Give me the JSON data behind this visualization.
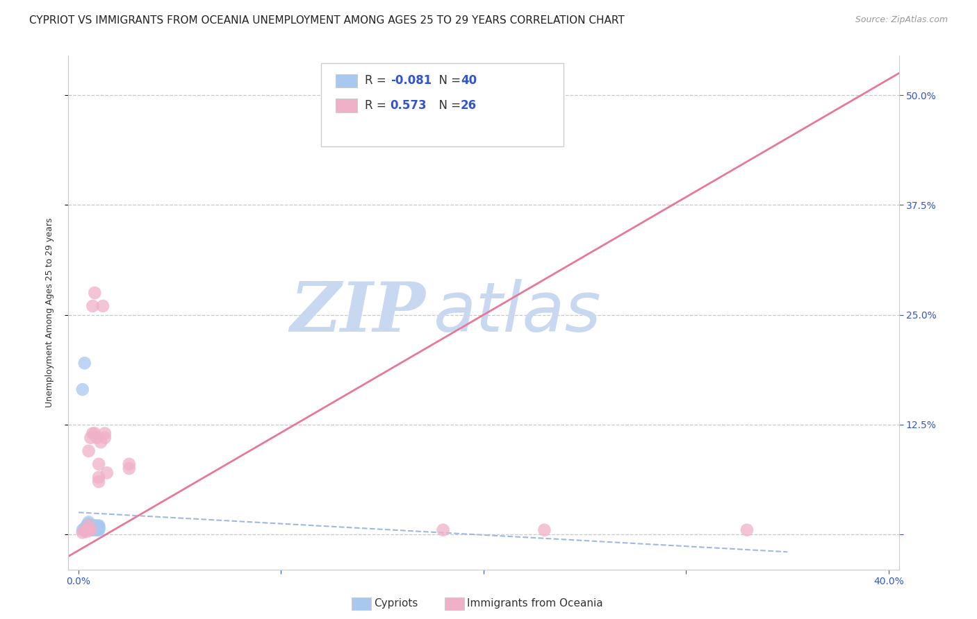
{
  "title": "CYPRIOT VS IMMIGRANTS FROM OCEANIA UNEMPLOYMENT AMONG AGES 25 TO 29 YEARS CORRELATION CHART",
  "source": "Source: ZipAtlas.com",
  "ylabel": "Unemployment Among Ages 25 to 29 years",
  "xlim": [
    -0.005,
    0.405
  ],
  "ylim": [
    -0.04,
    0.545
  ],
  "xticks": [
    0.0,
    0.1,
    0.2,
    0.3,
    0.4
  ],
  "xticklabels": [
    "0.0%",
    "",
    "",
    "",
    "40.0%"
  ],
  "ytick_positions": [
    0.0,
    0.125,
    0.25,
    0.375,
    0.5
  ],
  "yticklabels": [
    "",
    "12.5%",
    "25.0%",
    "37.5%",
    "50.0%"
  ],
  "grid_color": "#c8c8c8",
  "background_color": "#ffffff",
  "cypriot_color": "#a8c8f0",
  "oceania_color": "#f0b0c8",
  "cypriot_line_color": "#a0b8e0",
  "oceania_line_color": "#e87898",
  "cypriot_R": -0.081,
  "cypriot_N": 40,
  "oceania_R": 0.573,
  "oceania_N": 26,
  "legend_R_color": "#3355cc",
  "legend_N_color": "#3355cc",
  "cypriot_scatter_x": [
    0.002,
    0.003,
    0.003,
    0.004,
    0.004,
    0.004,
    0.005,
    0.005,
    0.005,
    0.005,
    0.005,
    0.005,
    0.006,
    0.006,
    0.006,
    0.006,
    0.007,
    0.007,
    0.007,
    0.007,
    0.007,
    0.007,
    0.008,
    0.008,
    0.008,
    0.008,
    0.008,
    0.008,
    0.009,
    0.009,
    0.009,
    0.009,
    0.01,
    0.01,
    0.01,
    0.01,
    0.01,
    0.01,
    0.002,
    0.003
  ],
  "cypriot_scatter_y": [
    0.005,
    0.005,
    0.007,
    0.005,
    0.007,
    0.01,
    0.005,
    0.007,
    0.008,
    0.01,
    0.012,
    0.014,
    0.005,
    0.007,
    0.008,
    0.01,
    0.005,
    0.006,
    0.007,
    0.008,
    0.009,
    0.01,
    0.005,
    0.006,
    0.007,
    0.008,
    0.009,
    0.01,
    0.005,
    0.006,
    0.007,
    0.008,
    0.005,
    0.006,
    0.007,
    0.008,
    0.009,
    0.01,
    0.165,
    0.195
  ],
  "oceania_scatter_x": [
    0.002,
    0.003,
    0.004,
    0.005,
    0.005,
    0.005,
    0.006,
    0.006,
    0.007,
    0.007,
    0.008,
    0.008,
    0.009,
    0.01,
    0.01,
    0.01,
    0.011,
    0.012,
    0.013,
    0.013,
    0.014,
    0.025,
    0.025,
    0.18,
    0.23,
    0.33
  ],
  "oceania_scatter_y": [
    0.002,
    0.004,
    0.003,
    0.005,
    0.01,
    0.095,
    0.005,
    0.11,
    0.115,
    0.26,
    0.115,
    0.275,
    0.11,
    0.06,
    0.065,
    0.08,
    0.105,
    0.26,
    0.11,
    0.115,
    0.07,
    0.075,
    0.08,
    0.005,
    0.005,
    0.005
  ],
  "oceania_line_x0": -0.005,
  "oceania_line_y0": -0.025,
  "oceania_line_x1": 0.405,
  "oceania_line_y1": 0.525,
  "cypriot_line_x0": 0.0,
  "cypriot_line_y0": 0.025,
  "cypriot_line_x1": 0.35,
  "cypriot_line_y1": -0.02,
  "watermark_zip": "ZIP",
  "watermark_atlas": "atlas",
  "watermark_color": "#c8d8f0",
  "title_fontsize": 11,
  "axis_label_fontsize": 9,
  "tick_fontsize": 10,
  "source_fontsize": 9
}
